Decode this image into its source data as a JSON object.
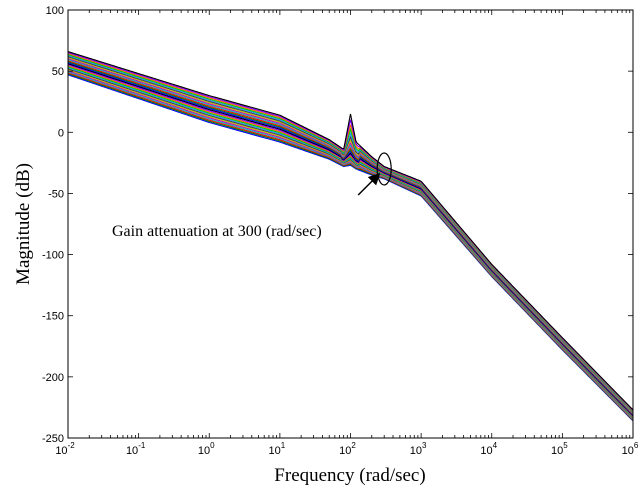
{
  "chart_data": {
    "type": "line",
    "title": "",
    "xlabel": "Frequency (rad/sec)",
    "ylabel": "Magnitude (dB)",
    "xscale": "log",
    "xlim": [
      0.01,
      1000000
    ],
    "ylim": [
      -250,
      100
    ],
    "x_ticks": [
      {
        "base": "10",
        "exp": "-2"
      },
      {
        "base": "10",
        "exp": "-1"
      },
      {
        "base": "10",
        "exp": "0"
      },
      {
        "base": "10",
        "exp": "1"
      },
      {
        "base": "10",
        "exp": "2"
      },
      {
        "base": "10",
        "exp": "3"
      },
      {
        "base": "10",
        "exp": "4"
      },
      {
        "base": "10",
        "exp": "5"
      },
      {
        "base": "10",
        "exp": "6"
      }
    ],
    "y_ticks": [
      "100",
      "50",
      "0",
      "-50",
      "-100",
      "-150",
      "-200",
      "-250"
    ],
    "grid": false,
    "legend": "none",
    "annotation": {
      "text": "Gain attenuation at 300 (rad/sec)",
      "target_x": 300,
      "target_y": -30
    },
    "series_envelope": {
      "x": [
        0.01,
        1,
        10,
        50,
        80,
        100,
        120,
        200,
        300,
        1000,
        10000,
        100000,
        1000000
      ],
      "upper": [
        66,
        30,
        14,
        -6,
        -14,
        15,
        -8,
        -20,
        -28,
        -40,
        -108,
        -168,
        -227
      ],
      "lower": [
        47,
        8,
        -8,
        -22,
        -28,
        -27,
        -30,
        -35,
        -38,
        -52,
        -118,
        -178,
        -236
      ]
    },
    "series_count": 24,
    "series_colors": [
      "#0000ff",
      "#008000",
      "#ff0000",
      "#00bfbf",
      "#bf00bf",
      "#bfbf00",
      "#404040",
      "#1e90ff",
      "#00c800",
      "#ff6600",
      "#8000ff",
      "#000000"
    ]
  }
}
